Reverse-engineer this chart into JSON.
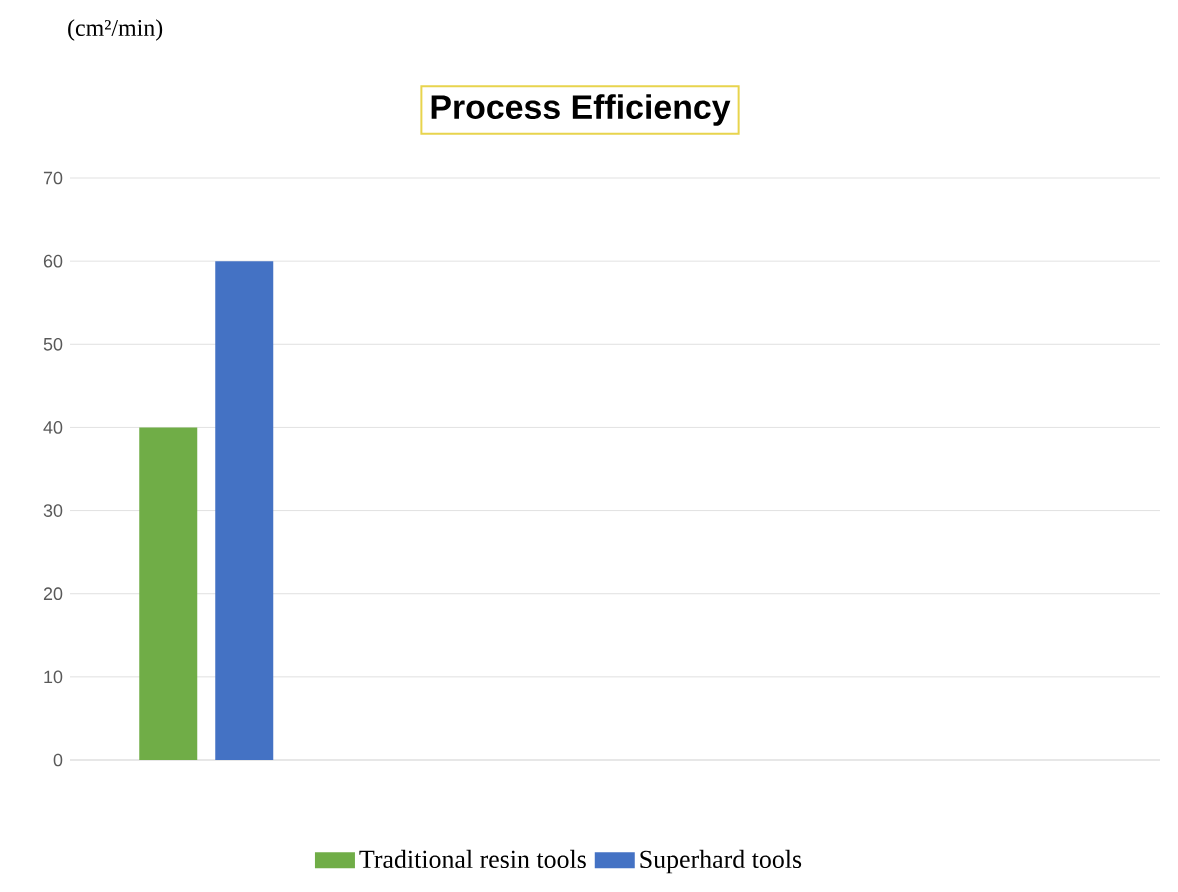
{
  "chart_data": {
    "type": "bar",
    "title": "Process Efficiency",
    "annotations": [
      "(cm²/min)"
    ],
    "categories": [
      null,
      null,
      null,
      null
    ],
    "series": [
      {
        "name": "Traditional resin tools",
        "color": "#70ad47",
        "values": [
          40,
          null,
          null,
          null
        ]
      },
      {
        "name": "Superhard tools",
        "color": "#4472c4",
        "values": [
          60,
          null,
          null,
          null
        ]
      }
    ],
    "ylim": [
      0,
      70
    ],
    "yticks": [
      0,
      10,
      20,
      30,
      40,
      50,
      60,
      70
    ],
    "grid": "y",
    "legend": "bottom"
  }
}
